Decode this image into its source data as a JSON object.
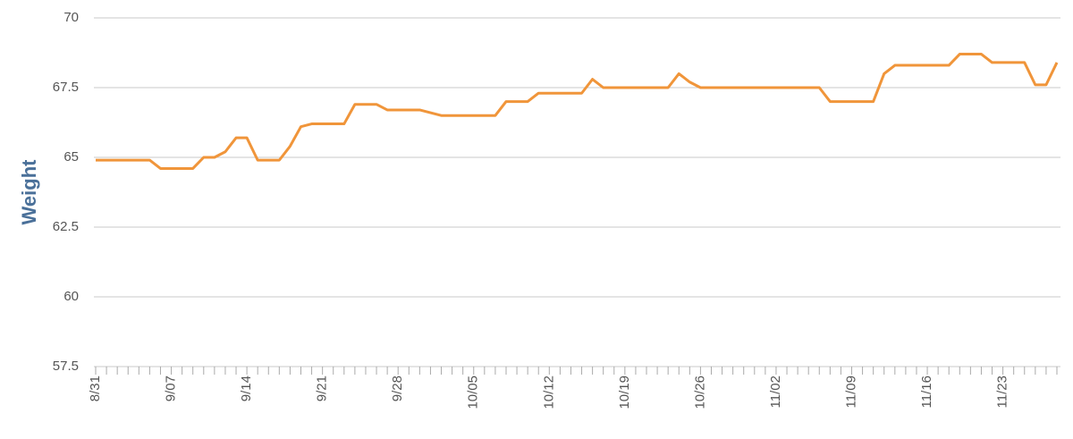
{
  "chart_data": {
    "type": "line",
    "y_label": "Weight",
    "categories": [
      "8/31",
      null,
      null,
      null,
      null,
      null,
      null,
      "9/07",
      null,
      null,
      null,
      null,
      null,
      null,
      "9/14",
      null,
      null,
      null,
      null,
      null,
      null,
      "9/21",
      null,
      null,
      null,
      null,
      null,
      null,
      "9/28",
      null,
      null,
      null,
      null,
      null,
      null,
      "10/05",
      null,
      null,
      null,
      null,
      null,
      null,
      "10/12",
      null,
      null,
      null,
      null,
      null,
      null,
      "10/19",
      null,
      null,
      null,
      null,
      null,
      null,
      "10/26",
      null,
      null,
      null,
      null,
      null,
      null,
      "11/02",
      null,
      null,
      null,
      null,
      null,
      null,
      "11/09",
      null,
      null,
      null,
      null,
      null,
      null,
      "11/16",
      null,
      null,
      null,
      null,
      null,
      null,
      "11/23",
      null,
      null,
      null,
      null,
      null
    ],
    "series": [
      {
        "color": "#f0953a",
        "values": [
          64.9,
          64.9,
          64.9,
          64.9,
          64.9,
          64.9,
          64.6,
          64.6,
          64.6,
          64.6,
          65.0,
          65.0,
          65.2,
          65.7,
          65.7,
          64.9,
          64.9,
          64.9,
          65.4,
          66.1,
          66.2,
          66.2,
          66.2,
          66.2,
          66.9,
          66.9,
          66.9,
          66.7,
          66.7,
          66.7,
          66.7,
          66.6,
          66.5,
          66.5,
          66.5,
          66.5,
          66.5,
          66.5,
          67.0,
          67.0,
          67.0,
          67.3,
          67.3,
          67.3,
          67.3,
          67.3,
          67.8,
          67.5,
          67.5,
          67.5,
          67.5,
          67.5,
          67.5,
          67.5,
          68.0,
          67.7,
          67.5,
          67.5,
          67.5,
          67.5,
          67.5,
          67.5,
          67.5,
          67.5,
          67.5,
          67.5,
          67.5,
          67.5,
          67.0,
          67.0,
          67.0,
          67.0,
          67.0,
          68.0,
          68.3,
          68.3,
          68.3,
          68.3,
          68.3,
          68.3,
          68.7,
          68.7,
          68.7,
          68.4,
          68.4,
          68.4,
          68.4,
          67.6,
          67.6,
          68.4
        ]
      }
    ],
    "ylim": [
      57.5,
      70
    ],
    "yticks": [
      57.5,
      60,
      62.5,
      65,
      67.5,
      70
    ],
    "grid": true
  }
}
